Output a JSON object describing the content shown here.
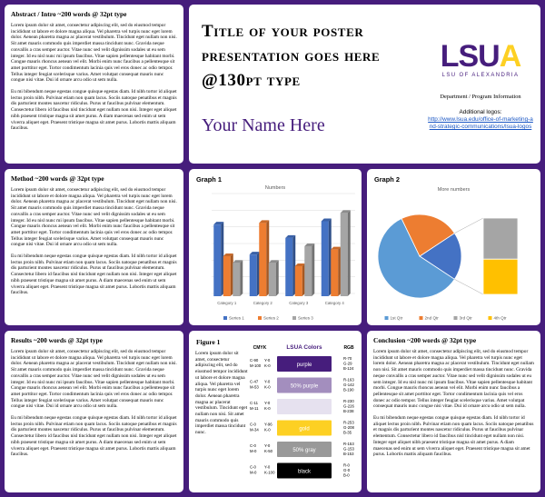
{
  "abstract": {
    "heading": "Abstract / Intro  ~200 words @ 32pt type",
    "paragraphs": [
      "Lorem ipsum dolor sit amet, consectetur adipiscing elit, sed do eiusmod tempor incididunt ut labore et dolore magna aliqua. Vel pharetra vel turpis nunc eget lorem dolor. Aenean pharetra magna ac placerat vestibulum. Tincidunt eget nullam non nisi. Sit amet mauris commodo quis imperdiet massa tincidunt nunc. Gravida neque convallis a cras semper auctor. Vitae nunc sed velit dignissim sodales ut eu sem integer. Id eu nisl nunc mi ipsum faucibus. Vitae sapien pellentesque habitant morbi. Congue mauris rhoncus aenean vel elit. Morbi enim nunc faucibus a pellentesque sit amet porttitor eget. Tortor condimentum lacinia quis vel eros donec ac odio tempor. Tellus integer feugiat scelerisque varius. Amet volutpat consequat mauris nunc congue nisi vitae. Dui id ornare arcu odio ut sem nulla.",
      "Eu mi bibendum neque egestas congue quisque egestas diam. Id nibh tortor id aliquet lectus proin nibh. Pulvinar etiam non quam lacus. Sociis natoque penatibus et magnis dis parturient montes nascetur ridiculus. Purus ut faucibus pulvinar elementum. Consectetur libero id faucibus nisl tincidunt eget nullam non nisi. Integer eget aliquet nibh praesent tristique magna sit amet purus. A diam maecenas sed enim ut sem viverra aliquet eget. Praesent tristique magna sit amet purus. Lobortis mattis aliquam faucibus."
    ]
  },
  "header": {
    "title": "Title of your poster presentation goes here @130pt type",
    "name": "Your Name Here",
    "logo": {
      "mark": "LSU",
      "mark_accent": "A",
      "subtitle": "LSU OF ALEXANDRIA"
    },
    "department": "Department / Program Information",
    "logos_label": "Additional logos:",
    "logos_link": "http://www.lsua.edu/office-of-marketing-and-strategic-communications/lsua-logos"
  },
  "method": {
    "heading": "Method  ~200 words @ 32pt type",
    "paragraphs": [
      "Lorem ipsum dolor sit amet, consectetur adipiscing elit, sed do eiusmod tempor incididunt ut labore et dolore magna aliqua. Vel pharetra vel turpis nunc eget lorem dolor. Aenean pharetra magna ac placerat vestibulum. Tincidunt eget nullam non nisi. Sit amet mauris commodo quis imperdiet massa tincidunt nunc. Gravida neque convallis a cras semper auctor. Vitae nunc sed velit dignissim sodales ut eu sem integer. Id eu nisl nunc mi ipsum faucibus. Vitae sapien pellentesque habitant morbi. Congue mauris rhoncus aenean vel elit. Morbi enim nunc faucibus a pellentesque sit amet porttitor eget. Tortor condimentum lacinia quis vel eros donec ac odio tempor. Tellus integer feugiat scelerisque varius. Amet volutpat consequat mauris nunc congue nisi vitae. Dui id ornare arcu odio ut sem nulla.",
      "Eu mi bibendum neque egestas congue quisque egestas diam. Id nibh tortor id aliquet lectus proin nibh. Pulvinar etiam non quam lacus. Sociis natoque penatibus et magnis dis parturient montes nascetur ridiculus. Purus ut faucibus pulvinar elementum. Consectetur libero id faucibus nisl tincidunt eget nullam non nisi. Integer eget aliquet nibh praesent tristique magna sit amet purus. A diam maecenas sed enim ut sem viverra aliquet eget. Praesent tristique magna sit amet purus. Lobortis mattis aliquam faucibus."
    ]
  },
  "results": {
    "heading": "Results  ~200 words @ 32pt type",
    "paragraphs": [
      "Lorem ipsum dolor sit amet, consectetur adipiscing elit, sed do eiusmod tempor incididunt ut labore et dolore magna aliqua. Vel pharetra vel turpis nunc eget lorem dolor. Aenean pharetra magna ac placerat vestibulum. Tincidunt eget nullam non nisi. Sit amet mauris commodo quis imperdiet massa tincidunt nunc. Gravida neque convallis a cras semper auctor. Vitae nunc sed velit dignissim sodales ut eu sem integer. Id eu nisl nunc mi ipsum faucibus. Vitae sapien pellentesque habitant morbi. Congue mauris rhoncus aenean vel elit. Morbi enim nunc faucibus a pellentesque sit amet porttitor eget. Tortor condimentum lacinia quis vel eros donec ac odio tempor. Tellus integer feugiat scelerisque varius. Amet volutpat consequat mauris nunc congue nisi vitae. Dui id ornare arcu odio ut sem nulla.",
      "Eu mi bibendum neque egestas congue quisque egestas diam. Id nibh tortor id aliquet lectus proin nibh. Pulvinar etiam non quam lacus. Sociis natoque penatibus et magnis dis parturient montes nascetur ridiculus. Purus ut faucibus pulvinar elementum. Consectetur libero id faucibus nisl tincidunt eget nullam non nisi. Integer eget aliquet nibh praesent tristique magna sit amet purus. A diam maecenas sed enim ut sem viverra aliquet eget. Praesent tristique magna sit amet purus. Lobortis mattis aliquam faucibus."
    ]
  },
  "conclusion": {
    "heading": "Conclusion  ~200 words @ 32pt type",
    "paragraphs": [
      "Lorem ipsum dolor sit amet, consectetur adipiscing elit, sed do eiusmod tempor incididunt ut labore et dolore magna aliqua. Vel pharetra vel turpis nunc eget lorem dolor. Aenean pharetra magna ac placerat vestibulum. Tincidunt eget nullam non nisi. Sit amet mauris commodo quis imperdiet massa tincidunt nunc. Gravida neque convallis a cras semper auctor. Vitae nunc sed velit dignissim sodales ut eu sem integer. Id eu nisl nunc mi ipsum faucibus. Vitae sapien pellentesque habitant morbi. Congue mauris rhoncus aenean vel elit. Morbi enim nunc faucibus a pellentesque sit amet porttitor eget. Tortor condimentum lacinia quis vel eros donec ac odio tempor. Tellus integer feugiat scelerisque varius. Amet volutpat consequat mauris nunc congue nisi vitae. Dui id ornare arcu odio ut sem nulla.",
      "Eu mi bibendum neque egestas congue quisque egestas diam. Id nibh tortor id aliquet lectus proin nibh. Pulvinar etiam non quam lacus. Sociis natoque penatibus et magnis dis parturient montes nascetur ridiculus. Purus ut faucibus pulvinar elementum. Consectetur libero id faucibus nisl tincidunt eget nullam non nisi. Integer eget aliquet nibh praesent tristique magna sit amet purus. A diam maecenas sed enim ut sem viverra aliquet eget. Praesent tristique magna sit amet purus. Lobortis mattis aliquam faucibus."
    ]
  },
  "figure": {
    "heading": "Figure 1",
    "text": "Lorem ipsum dolor sit amet, consectetur adipiscing elit, sed do eiusmod tempor incididunt ut labore et dolore magna aliqua. Vel pharetra vel turpis nunc eget lorem dolor. Aenean pharetra magna ac placerat vestibulum. Tincidunt eget nullam non nisi. Sit amet mauris commodo quis imperdiet massa tincidunt nunc.",
    "table": {
      "headers": [
        "CMYK",
        "LSUA Colors",
        "RGB"
      ],
      "rows": [
        {
          "cmyk": [
            "C-90",
            "M-100",
            "Y-0",
            "K-0"
          ],
          "name": "purple",
          "color": "#461d7c",
          "rgb": [
            "R-70",
            "G-29",
            "B-124"
          ]
        },
        {
          "cmyk": [
            "C-47",
            "M-53",
            "Y-0",
            "K-0"
          ],
          "name": "50% purple",
          "color": "#a38ebe",
          "rgb": [
            "R-163",
            "G-142",
            "B-190"
          ]
        },
        {
          "cmyk": [
            "C-11",
            "M-11",
            "Y-0",
            "K-0"
          ],
          "color": "#e6e1ef",
          "rgb": [
            "R-230",
            "G-226",
            "B-238"
          ]
        },
        {
          "cmyk": [
            "C-0",
            "M-34",
            "Y-96",
            "K-0"
          ],
          "name": "gold",
          "color": "#fdd023",
          "rgb": [
            "R-253",
            "G-208",
            "B-35"
          ]
        },
        {
          "cmyk": [
            "C-0",
            "M-0",
            "Y-0",
            "K-50"
          ],
          "name": "50% gray",
          "color": "#999999",
          "rgb": [
            "R-153",
            "G-153",
            "B-153"
          ]
        },
        {
          "cmyk": [
            "C-0",
            "M-0",
            "Y-0",
            "K-100"
          ],
          "name": "black",
          "color": "#000000",
          "rgb": [
            "R-0",
            "G-0",
            "B-0"
          ]
        }
      ]
    }
  },
  "chart_data": [
    {
      "type": "bar",
      "panel_title": "Graph 1",
      "title": "Numbers",
      "categories": [
        "Category 1",
        "Category 2",
        "Category 3",
        "Category 4"
      ],
      "series": [
        {
          "name": "Series 1",
          "color": "#4472c4",
          "values": [
            4.3,
            2.5,
            3.5,
            4.5
          ]
        },
        {
          "name": "Series 2",
          "color": "#ed7d31",
          "values": [
            2.4,
            4.4,
            1.8,
            2.8
          ]
        },
        {
          "name": "Series 3",
          "color": "#a5a5a5",
          "values": [
            2,
            2,
            3,
            5
          ]
        }
      ],
      "ylim": [
        0,
        6
      ],
      "yticks": [
        0,
        1,
        2,
        3,
        4,
        5,
        6
      ],
      "grid": true,
      "legend": "bottom"
    },
    {
      "type": "pie-of-pie",
      "panel_title": "Graph 2",
      "title": "More numbers",
      "categories": [
        "1st Qtr",
        "2nd Qtr",
        "3rd Qtr",
        "4th Qtr"
      ],
      "values": [
        8.2,
        3.2,
        1.4,
        1.2
      ],
      "colors": [
        "#5b9bd5",
        "#ed7d31",
        "#a5a5a5",
        "#ffc000"
      ],
      "other_color": "#4472c4",
      "legend": "bottom"
    }
  ]
}
